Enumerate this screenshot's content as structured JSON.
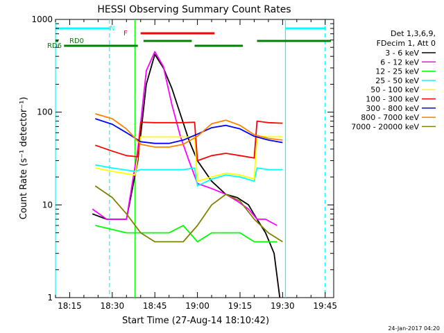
{
  "chart_data": {
    "type": "line",
    "title": "HESSI Observing Summary Count Rates",
    "xlabel_prefix": "Start Time (",
    "start_time": "27-Aug-14 18:10:42",
    "xlabel_suffix": ")",
    "ylabel": "Count Rate (s⁻¹ detector⁻¹)",
    "yscale": "log",
    "ylim": [
      1,
      1000
    ],
    "xlim": [
      "18:10",
      "19:48"
    ],
    "y_ticks": [
      "1",
      "10",
      "100",
      "1000"
    ],
    "x_ticks": [
      "18:15",
      "18:30",
      "18:45",
      "19:00",
      "19:15",
      "19:30",
      "19:45"
    ],
    "grid": false,
    "legend_position": "right",
    "legend_header": [
      "Det 1,3,6,9,",
      "FDecim 1, Att 0"
    ],
    "footer_date": "24-Jan-2017 04:20",
    "series": [
      {
        "name": "3 - 6 keV",
        "color": "#000000",
        "x": [
          "18:23",
          "18:28",
          "18:35",
          "18:39",
          "18:42",
          "18:45",
          "18:48",
          "18:51",
          "18:54",
          "18:57",
          "19:00",
          "19:05",
          "19:10",
          "19:14",
          "19:18",
          "19:21",
          "19:24",
          "19:27",
          "19:29"
        ],
        "values": [
          8,
          7,
          7,
          30,
          200,
          420,
          300,
          180,
          95,
          50,
          30,
          18,
          13,
          12,
          10,
          7,
          5,
          3,
          1
        ]
      },
      {
        "name": "6 - 12 keV",
        "color": "#ff00ff",
        "x": [
          "18:23",
          "18:28",
          "18:35",
          "18:39",
          "18:42",
          "18:45",
          "18:48",
          "18:51",
          "18:54",
          "18:57",
          "19:00",
          "19:05",
          "19:10",
          "19:14",
          "19:18",
          "19:21",
          "19:24",
          "19:28"
        ],
        "values": [
          9,
          7,
          7,
          40,
          280,
          450,
          310,
          120,
          55,
          30,
          17,
          15,
          13,
          11,
          9,
          7,
          7,
          6
        ]
      },
      {
        "name": "12 - 25 keV",
        "color": "#00ff00",
        "x": [
          "18:24",
          "18:35",
          "18:40",
          "18:45",
          "18:50",
          "18:55",
          "19:00",
          "19:05",
          "19:10",
          "19:15",
          "19:20",
          "19:24",
          "19:28"
        ],
        "values": [
          6,
          5,
          5,
          5,
          5,
          6,
          4,
          5,
          5,
          5,
          4,
          4,
          4
        ]
      },
      {
        "name": "25 - 50 keV",
        "color": "#00ffff",
        "x": [
          "18:24",
          "18:30",
          "18:38",
          "18:40",
          "18:45",
          "18:50",
          "18:55",
          "18:59",
          "19:00",
          "19:05",
          "19:10",
          "19:15",
          "19:20",
          "19:21",
          "19:25",
          "19:30"
        ],
        "values": [
          27,
          25,
          23,
          24,
          24,
          24,
          24,
          25,
          16,
          19,
          21,
          20,
          18,
          25,
          24,
          24
        ]
      },
      {
        "name": "50 - 100 keV",
        "color": "#ffff00",
        "x": [
          "18:24",
          "18:30",
          "18:38",
          "18:40",
          "18:45",
          "18:50",
          "18:55",
          "18:59",
          "19:00",
          "19:05",
          "19:10",
          "19:15",
          "19:20",
          "19:21",
          "19:25",
          "19:30"
        ],
        "values": [
          25,
          23,
          21,
          54,
          54,
          54,
          54,
          54,
          18,
          20,
          22,
          21,
          19,
          55,
          54,
          54
        ]
      },
      {
        "name": "100 - 300 keV",
        "color": "#ff0000",
        "x": [
          "18:24",
          "18:30",
          "18:35",
          "18:39",
          "18:40",
          "18:45",
          "18:50",
          "18:55",
          "18:59",
          "19:00",
          "19:05",
          "19:10",
          "19:15",
          "19:20",
          "19:21",
          "19:25",
          "19:30"
        ],
        "values": [
          44,
          38,
          34,
          33,
          78,
          77,
          77,
          77,
          78,
          30,
          34,
          36,
          34,
          32,
          80,
          77,
          76
        ]
      },
      {
        "name": "300 - 800 keV",
        "color": "#0000ff",
        "x": [
          "18:24",
          "18:30",
          "18:35",
          "18:40",
          "18:45",
          "18:50",
          "18:55",
          "19:00",
          "19:05",
          "19:10",
          "19:15",
          "19:20",
          "19:25",
          "19:30"
        ],
        "values": [
          85,
          74,
          60,
          48,
          46,
          46,
          50,
          58,
          68,
          72,
          66,
          55,
          50,
          47
        ]
      },
      {
        "name": "800 - 7000 keV",
        "color": "#ff8000",
        "x": [
          "18:24",
          "18:30",
          "18:35",
          "18:40",
          "18:45",
          "18:50",
          "18:55",
          "19:00",
          "19:05",
          "19:10",
          "19:15",
          "19:20",
          "19:25",
          "19:30"
        ],
        "values": [
          96,
          85,
          66,
          45,
          42,
          42,
          45,
          55,
          75,
          82,
          72,
          57,
          52,
          50
        ]
      },
      {
        "name": "7000 - 20000 keV",
        "color": "#808000",
        "x": [
          "18:24",
          "18:30",
          "18:35",
          "18:40",
          "18:45",
          "18:50",
          "18:55",
          "19:00",
          "19:05",
          "19:10",
          "19:15",
          "19:20",
          "19:25",
          "19:30"
        ],
        "values": [
          16,
          12,
          8,
          5,
          4,
          4,
          4,
          6,
          10,
          13,
          11,
          7,
          5,
          4
        ]
      }
    ],
    "flag_bars": [
      {
        "label": "N",
        "color": "#00ffff",
        "segments": [
          [
            "18:10",
            "18:29"
          ],
          [
            "19:31",
            "19:45"
          ]
        ]
      },
      {
        "label": "F",
        "color": "#ff0000",
        "segments": [
          [
            "18:40",
            "19:06"
          ]
        ]
      },
      {
        "label": "RD0",
        "color": "#008000",
        "segments": [
          [
            "18:10",
            "18:11"
          ],
          [
            "18:41",
            "18:58"
          ],
          [
            "19:21",
            "19:47"
          ]
        ]
      },
      {
        "label": "RD6",
        "color": "#008000",
        "segments": [
          [
            "18:13",
            "18:39"
          ],
          [
            "18:59",
            "19:16"
          ]
        ]
      }
    ],
    "vertical_lines": [
      {
        "x": "18:10",
        "color": "#00ffff",
        "style": "solid"
      },
      {
        "x": "18:29",
        "color": "#00ffff",
        "style": "dashed"
      },
      {
        "x": "18:38",
        "color": "#00ff00",
        "style": "solid"
      },
      {
        "x": "19:31",
        "color": "#00ffff",
        "style": "solid"
      },
      {
        "x": "19:45",
        "color": "#00ffff",
        "style": "dashed"
      }
    ]
  }
}
